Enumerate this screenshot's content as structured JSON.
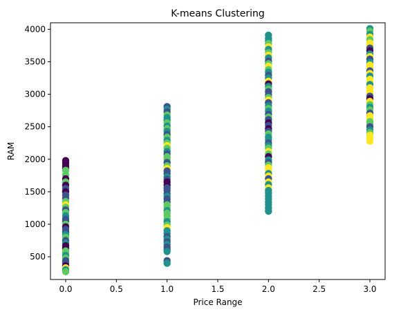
{
  "chart_data": {
    "type": "scatter",
    "title": "K-means Clustering",
    "xlabel": "Price Range",
    "ylabel": "RAM",
    "xlim": [
      -0.15,
      3.15
    ],
    "ylim": [
      150,
      4100
    ],
    "xticks": [
      0.0,
      0.5,
      1.0,
      1.5,
      2.0,
      2.5,
      3.0
    ],
    "xtick_labels": [
      "0.0",
      "0.5",
      "1.0",
      "1.5",
      "2.0",
      "2.5",
      "3.0"
    ],
    "yticks": [
      500,
      1000,
      1500,
      2000,
      2500,
      3000,
      3500,
      4000
    ],
    "ytick_labels": [
      "500",
      "1000",
      "1500",
      "2000",
      "2500",
      "3000",
      "3500",
      "4000"
    ],
    "grid": false,
    "colormap": "viridis",
    "cluster_colors": [
      "#440154",
      "#3b528b",
      "#21918c",
      "#5ec962",
      "#fde725"
    ],
    "points": [
      {
        "x": 0,
        "y": 1980,
        "c": 0
      },
      {
        "x": 0,
        "y": 1940,
        "c": 0
      },
      {
        "x": 0,
        "y": 1900,
        "c": 0
      },
      {
        "x": 0,
        "y": 1860,
        "c": 0
      },
      {
        "x": 0,
        "y": 1830,
        "c": 3
      },
      {
        "x": 0,
        "y": 1760,
        "c": 3
      },
      {
        "x": 0,
        "y": 1700,
        "c": 0
      },
      {
        "x": 0,
        "y": 1650,
        "c": 3
      },
      {
        "x": 0,
        "y": 1600,
        "c": 0
      },
      {
        "x": 0,
        "y": 1550,
        "c": 1
      },
      {
        "x": 0,
        "y": 1500,
        "c": 0
      },
      {
        "x": 0,
        "y": 1450,
        "c": 1
      },
      {
        "x": 0,
        "y": 1400,
        "c": 1
      },
      {
        "x": 0,
        "y": 1350,
        "c": 3
      },
      {
        "x": 0,
        "y": 1300,
        "c": 4
      },
      {
        "x": 0,
        "y": 1260,
        "c": 3
      },
      {
        "x": 0,
        "y": 1220,
        "c": 1
      },
      {
        "x": 0,
        "y": 1180,
        "c": 3
      },
      {
        "x": 0,
        "y": 1130,
        "c": 2
      },
      {
        "x": 0,
        "y": 1080,
        "c": 1
      },
      {
        "x": 0,
        "y": 1050,
        "c": 1
      },
      {
        "x": 0,
        "y": 1000,
        "c": 3
      },
      {
        "x": 0,
        "y": 960,
        "c": 0
      },
      {
        "x": 0,
        "y": 920,
        "c": 1
      },
      {
        "x": 0,
        "y": 880,
        "c": 1
      },
      {
        "x": 0,
        "y": 840,
        "c": 2
      },
      {
        "x": 0,
        "y": 800,
        "c": 3
      },
      {
        "x": 0,
        "y": 750,
        "c": 1
      },
      {
        "x": 0,
        "y": 710,
        "c": 2
      },
      {
        "x": 0,
        "y": 670,
        "c": 0
      },
      {
        "x": 0,
        "y": 630,
        "c": 0
      },
      {
        "x": 0,
        "y": 590,
        "c": 3
      },
      {
        "x": 0,
        "y": 560,
        "c": 3
      },
      {
        "x": 0,
        "y": 520,
        "c": 2
      },
      {
        "x": 0,
        "y": 480,
        "c": 3
      },
      {
        "x": 0,
        "y": 440,
        "c": 1
      },
      {
        "x": 0,
        "y": 400,
        "c": 1
      },
      {
        "x": 0,
        "y": 360,
        "c": 0
      },
      {
        "x": 0,
        "y": 330,
        "c": 4
      },
      {
        "x": 0,
        "y": 300,
        "c": 2
      },
      {
        "x": 0,
        "y": 270,
        "c": 3
      },
      {
        "x": 1,
        "y": 2810,
        "c": 1
      },
      {
        "x": 1,
        "y": 2770,
        "c": 2
      },
      {
        "x": 1,
        "y": 2730,
        "c": 1
      },
      {
        "x": 1,
        "y": 2680,
        "c": 3
      },
      {
        "x": 1,
        "y": 2640,
        "c": 2
      },
      {
        "x": 1,
        "y": 2600,
        "c": 2
      },
      {
        "x": 1,
        "y": 2560,
        "c": 3
      },
      {
        "x": 1,
        "y": 2510,
        "c": 2
      },
      {
        "x": 1,
        "y": 2470,
        "c": 3
      },
      {
        "x": 1,
        "y": 2430,
        "c": 2
      },
      {
        "x": 1,
        "y": 2380,
        "c": 1
      },
      {
        "x": 1,
        "y": 2340,
        "c": 3
      },
      {
        "x": 1,
        "y": 2290,
        "c": 2
      },
      {
        "x": 1,
        "y": 2250,
        "c": 3
      },
      {
        "x": 1,
        "y": 2210,
        "c": 4
      },
      {
        "x": 1,
        "y": 2170,
        "c": 3
      },
      {
        "x": 1,
        "y": 2120,
        "c": 2
      },
      {
        "x": 1,
        "y": 2080,
        "c": 1
      },
      {
        "x": 1,
        "y": 2040,
        "c": 3
      },
      {
        "x": 1,
        "y": 2000,
        "c": 3
      },
      {
        "x": 1,
        "y": 1950,
        "c": 1
      },
      {
        "x": 1,
        "y": 1900,
        "c": 3
      },
      {
        "x": 1,
        "y": 1860,
        "c": 4
      },
      {
        "x": 1,
        "y": 1820,
        "c": 1
      },
      {
        "x": 1,
        "y": 1780,
        "c": 1
      },
      {
        "x": 1,
        "y": 1730,
        "c": 2
      },
      {
        "x": 1,
        "y": 1690,
        "c": 1
      },
      {
        "x": 1,
        "y": 1650,
        "c": 0
      },
      {
        "x": 1,
        "y": 1600,
        "c": 0
      },
      {
        "x": 1,
        "y": 1560,
        "c": 1
      },
      {
        "x": 1,
        "y": 1520,
        "c": 1
      },
      {
        "x": 1,
        "y": 1470,
        "c": 1
      },
      {
        "x": 1,
        "y": 1430,
        "c": 2
      },
      {
        "x": 1,
        "y": 1390,
        "c": 1
      },
      {
        "x": 1,
        "y": 1340,
        "c": 1
      },
      {
        "x": 1,
        "y": 1300,
        "c": 3
      },
      {
        "x": 1,
        "y": 1260,
        "c": 3
      },
      {
        "x": 1,
        "y": 1210,
        "c": 2
      },
      {
        "x": 1,
        "y": 1170,
        "c": 3
      },
      {
        "x": 1,
        "y": 1130,
        "c": 3
      },
      {
        "x": 1,
        "y": 1080,
        "c": 3
      },
      {
        "x": 1,
        "y": 1040,
        "c": 2
      },
      {
        "x": 1,
        "y": 990,
        "c": 3
      },
      {
        "x": 1,
        "y": 950,
        "c": 4
      },
      {
        "x": 1,
        "y": 900,
        "c": 2
      },
      {
        "x": 1,
        "y": 860,
        "c": 2
      },
      {
        "x": 1,
        "y": 810,
        "c": 1
      },
      {
        "x": 1,
        "y": 770,
        "c": 2
      },
      {
        "x": 1,
        "y": 730,
        "c": 1
      },
      {
        "x": 1,
        "y": 690,
        "c": 2
      },
      {
        "x": 1,
        "y": 650,
        "c": 1
      },
      {
        "x": 1,
        "y": 610,
        "c": 1
      },
      {
        "x": 1,
        "y": 580,
        "c": 2
      },
      {
        "x": 1,
        "y": 440,
        "c": 1
      },
      {
        "x": 1,
        "y": 400,
        "c": 2
      },
      {
        "x": 2,
        "y": 3910,
        "c": 2
      },
      {
        "x": 2,
        "y": 3860,
        "c": 2
      },
      {
        "x": 2,
        "y": 3820,
        "c": 2
      },
      {
        "x": 2,
        "y": 3780,
        "c": 3
      },
      {
        "x": 2,
        "y": 3730,
        "c": 4
      },
      {
        "x": 2,
        "y": 3690,
        "c": 2
      },
      {
        "x": 2,
        "y": 3640,
        "c": 3
      },
      {
        "x": 2,
        "y": 3600,
        "c": 4
      },
      {
        "x": 2,
        "y": 3560,
        "c": 2
      },
      {
        "x": 2,
        "y": 3510,
        "c": 1
      },
      {
        "x": 2,
        "y": 3470,
        "c": 3
      },
      {
        "x": 2,
        "y": 3430,
        "c": 4
      },
      {
        "x": 2,
        "y": 3380,
        "c": 3
      },
      {
        "x": 2,
        "y": 3340,
        "c": 2
      },
      {
        "x": 2,
        "y": 3290,
        "c": 1
      },
      {
        "x": 2,
        "y": 3250,
        "c": 2
      },
      {
        "x": 2,
        "y": 3200,
        "c": 4
      },
      {
        "x": 2,
        "y": 3160,
        "c": 0
      },
      {
        "x": 2,
        "y": 3120,
        "c": 2
      },
      {
        "x": 2,
        "y": 3080,
        "c": 3
      },
      {
        "x": 2,
        "y": 3040,
        "c": 1
      },
      {
        "x": 2,
        "y": 2990,
        "c": 1
      },
      {
        "x": 2,
        "y": 2950,
        "c": 3
      },
      {
        "x": 2,
        "y": 2910,
        "c": 4
      },
      {
        "x": 2,
        "y": 2870,
        "c": 1
      },
      {
        "x": 2,
        "y": 2820,
        "c": 2
      },
      {
        "x": 2,
        "y": 2780,
        "c": 3
      },
      {
        "x": 2,
        "y": 2740,
        "c": 2
      },
      {
        "x": 2,
        "y": 2690,
        "c": 1
      },
      {
        "x": 2,
        "y": 2650,
        "c": 3
      },
      {
        "x": 2,
        "y": 2610,
        "c": 1
      },
      {
        "x": 2,
        "y": 2560,
        "c": 0
      },
      {
        "x": 2,
        "y": 2520,
        "c": 1
      },
      {
        "x": 2,
        "y": 2470,
        "c": 0
      },
      {
        "x": 2,
        "y": 2430,
        "c": 1
      },
      {
        "x": 2,
        "y": 2390,
        "c": 3
      },
      {
        "x": 2,
        "y": 2340,
        "c": 2
      },
      {
        "x": 2,
        "y": 2300,
        "c": 2
      },
      {
        "x": 2,
        "y": 2250,
        "c": 1
      },
      {
        "x": 2,
        "y": 2210,
        "c": 2
      },
      {
        "x": 2,
        "y": 2170,
        "c": 3
      },
      {
        "x": 2,
        "y": 2120,
        "c": 4
      },
      {
        "x": 2,
        "y": 2080,
        "c": 3
      },
      {
        "x": 2,
        "y": 2040,
        "c": 0
      },
      {
        "x": 2,
        "y": 1990,
        "c": 2
      },
      {
        "x": 2,
        "y": 1950,
        "c": 1
      },
      {
        "x": 2,
        "y": 1910,
        "c": 3
      },
      {
        "x": 2,
        "y": 1870,
        "c": 4
      },
      {
        "x": 2,
        "y": 1830,
        "c": 4
      },
      {
        "x": 2,
        "y": 1780,
        "c": 2
      },
      {
        "x": 2,
        "y": 1740,
        "c": 4
      },
      {
        "x": 2,
        "y": 1700,
        "c": 1
      },
      {
        "x": 2,
        "y": 1650,
        "c": 4
      },
      {
        "x": 2,
        "y": 1610,
        "c": 2
      },
      {
        "x": 2,
        "y": 1560,
        "c": 4
      },
      {
        "x": 2,
        "y": 1520,
        "c": 2
      },
      {
        "x": 2,
        "y": 1480,
        "c": 2
      },
      {
        "x": 2,
        "y": 1430,
        "c": 2
      },
      {
        "x": 2,
        "y": 1390,
        "c": 2
      },
      {
        "x": 2,
        "y": 1340,
        "c": 2
      },
      {
        "x": 2,
        "y": 1300,
        "c": 2
      },
      {
        "x": 2,
        "y": 1250,
        "c": 2
      },
      {
        "x": 2,
        "y": 1200,
        "c": 2
      },
      {
        "x": 3,
        "y": 4010,
        "c": 2
      },
      {
        "x": 3,
        "y": 3970,
        "c": 3
      },
      {
        "x": 3,
        "y": 3920,
        "c": 2
      },
      {
        "x": 3,
        "y": 3880,
        "c": 4
      },
      {
        "x": 3,
        "y": 3840,
        "c": 3
      },
      {
        "x": 3,
        "y": 3790,
        "c": 4
      },
      {
        "x": 3,
        "y": 3750,
        "c": 4
      },
      {
        "x": 3,
        "y": 3710,
        "c": 1
      },
      {
        "x": 3,
        "y": 3670,
        "c": 0
      },
      {
        "x": 3,
        "y": 3620,
        "c": 2
      },
      {
        "x": 3,
        "y": 3580,
        "c": 4
      },
      {
        "x": 3,
        "y": 3540,
        "c": 1
      },
      {
        "x": 3,
        "y": 3490,
        "c": 2
      },
      {
        "x": 3,
        "y": 3450,
        "c": 4
      },
      {
        "x": 3,
        "y": 3410,
        "c": 4
      },
      {
        "x": 3,
        "y": 3360,
        "c": 1
      },
      {
        "x": 3,
        "y": 3320,
        "c": 4
      },
      {
        "x": 3,
        "y": 3280,
        "c": 2
      },
      {
        "x": 3,
        "y": 3230,
        "c": 4
      },
      {
        "x": 3,
        "y": 3190,
        "c": 4
      },
      {
        "x": 3,
        "y": 3150,
        "c": 2
      },
      {
        "x": 3,
        "y": 3100,
        "c": 4
      },
      {
        "x": 3,
        "y": 3060,
        "c": 4
      },
      {
        "x": 3,
        "y": 3020,
        "c": 4
      },
      {
        "x": 3,
        "y": 2970,
        "c": 1
      },
      {
        "x": 3,
        "y": 2930,
        "c": 0
      },
      {
        "x": 3,
        "y": 2890,
        "c": 4
      },
      {
        "x": 3,
        "y": 2840,
        "c": 3
      },
      {
        "x": 3,
        "y": 2800,
        "c": 2
      },
      {
        "x": 3,
        "y": 2760,
        "c": 3
      },
      {
        "x": 3,
        "y": 2710,
        "c": 1
      },
      {
        "x": 3,
        "y": 2670,
        "c": 4
      },
      {
        "x": 3,
        "y": 2630,
        "c": 4
      },
      {
        "x": 3,
        "y": 2580,
        "c": 3
      },
      {
        "x": 3,
        "y": 2540,
        "c": 3
      },
      {
        "x": 3,
        "y": 2500,
        "c": 1
      },
      {
        "x": 3,
        "y": 2450,
        "c": 2
      },
      {
        "x": 3,
        "y": 2410,
        "c": 3
      },
      {
        "x": 3,
        "y": 2370,
        "c": 4
      },
      {
        "x": 3,
        "y": 2320,
        "c": 4
      },
      {
        "x": 3,
        "y": 2280,
        "c": 4
      }
    ]
  }
}
